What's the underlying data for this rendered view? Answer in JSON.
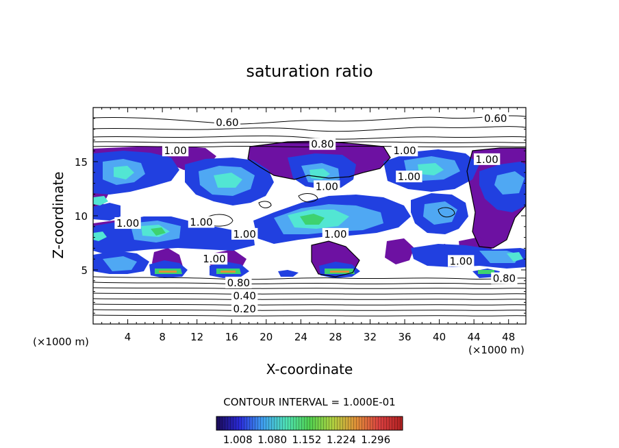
{
  "chart_data": {
    "type": "heatmap",
    "title": "saturation ratio",
    "xlabel": "X-coordinate",
    "ylabel": "Z-coordinate",
    "x_unit": "(×1000 m)",
    "z_unit": "(×1000 m)",
    "xlim": [
      0,
      50
    ],
    "ylim": [
      0,
      20
    ],
    "x_ticks": [
      4,
      8,
      12,
      16,
      20,
      24,
      28,
      32,
      36,
      40,
      44,
      48
    ],
    "y_ticks": [
      5,
      10,
      15
    ],
    "contour_interval_text": "CONTOUR INTERVAL = 1.000E-01",
    "contour_labels": [
      {
        "text": "0.60",
        "x": 15.5,
        "z": 18.6
      },
      {
        "text": "0.60",
        "x": 46.5,
        "z": 19.0
      },
      {
        "text": "0.80",
        "x": 26.5,
        "z": 16.6
      },
      {
        "text": "1.00",
        "x": 9.5,
        "z": 16.0
      },
      {
        "text": "1.00",
        "x": 36.0,
        "z": 16.0
      },
      {
        "text": "1.00",
        "x": 45.5,
        "z": 15.2
      },
      {
        "text": "1.00",
        "x": 36.5,
        "z": 13.6
      },
      {
        "text": "1.00",
        "x": 27.0,
        "z": 12.7
      },
      {
        "text": "1.00",
        "x": 4.0,
        "z": 9.3
      },
      {
        "text": "1.00",
        "x": 12.5,
        "z": 9.4
      },
      {
        "text": "1.00",
        "x": 17.5,
        "z": 8.3
      },
      {
        "text": "1.00",
        "x": 28.0,
        "z": 8.3
      },
      {
        "text": "1.00",
        "x": 14.0,
        "z": 6.0
      },
      {
        "text": "1.00",
        "x": 42.5,
        "z": 5.8
      },
      {
        "text": "0.80",
        "x": 16.8,
        "z": 3.8
      },
      {
        "text": "0.80",
        "x": 47.5,
        "z": 4.2
      },
      {
        "text": "0.40",
        "x": 17.5,
        "z": 2.6
      },
      {
        "text": "0.20",
        "x": 17.5,
        "z": 1.4
      }
    ],
    "colorbar": {
      "ticks": [
        "1.008",
        "1.080",
        "1.152",
        "1.224",
        "1.296"
      ],
      "colors": [
        "#1a0a55",
        "#2a2ad8",
        "#3fa0f0",
        "#4ee0b4",
        "#50d050",
        "#b0d040",
        "#e09038",
        "#d84040",
        "#b02020"
      ]
    },
    "fill_colors": {
      "purple": "#6d11a2",
      "blue": "#2140e0",
      "light_blue": "#4fa8f3",
      "cyan": "#52e6d3",
      "green": "#3ed270"
    }
  }
}
